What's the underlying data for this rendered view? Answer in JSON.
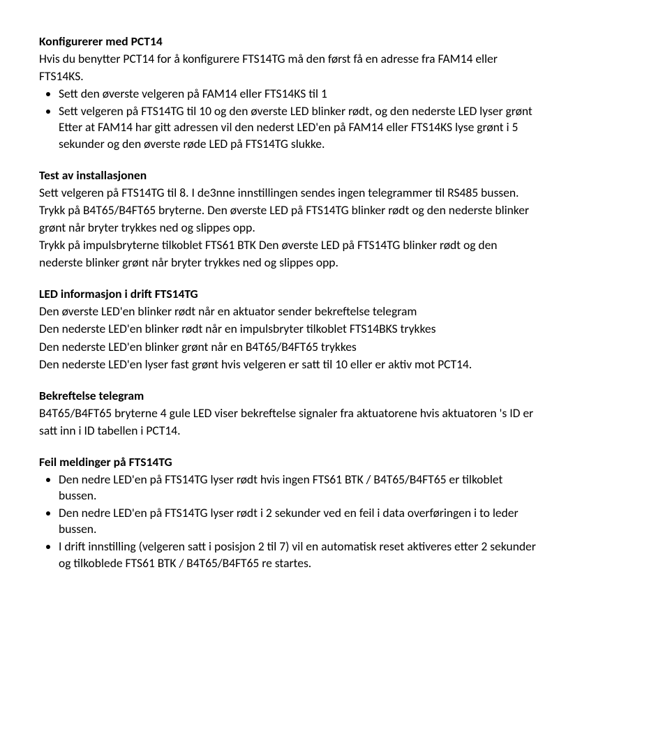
{
  "s1": {
    "heading": "Konfigurerer med PCT14",
    "intro1": "Hvis du benytter PCT14 for å konfigurere FTS14TG må den først få en adresse fra FAM14 eller",
    "intro2": "FTS14KS.",
    "b1": "Sett den øverste velgeren på FAM14 eller FTS14KS til 1",
    "b2a": "Sett velgeren på FTS14TG til 10 og den øverste LED blinker rødt, og den nederste LED lyser grønt",
    "b2b": "Etter at FAM14 har gitt adressen vil den nederst LED'en på FAM14 eller FTS14KS lyse grønt i 5",
    "b2c": "sekunder og den øverste røde LED på FTS14TG slukke."
  },
  "s2": {
    "heading": "Test av installasjonen",
    "p1": "Sett velgeren på FTS14TG til 8. I de3nne innstillingen sendes ingen telegrammer til RS485 bussen.",
    "p2a": "Trykk på B4T65/B4FT65 bryterne. Den øverste LED på FTS14TG blinker rødt og den nederste blinker",
    "p2b": "grønt når bryter trykkes ned og slippes opp.",
    "p3a": "Trykk på impulsbryterne tilkoblet FTS61 BTK Den øverste LED på FTS14TG blinker rødt og den",
    "p3b": "nederste blinker grønt når bryter trykkes ned og slippes opp."
  },
  "s3": {
    "heading": "LED informasjon i drift FTS14TG",
    "l1": "Den øverste LED'en blinker rødt når en aktuator sender bekreftelse telegram",
    "l2": "Den nederste LED'en blinker rødt når en impulsbryter tilkoblet FTS14BKS trykkes",
    "l3": "Den nederste LED'en blinker grønt når en B4T65/B4FT65 trykkes",
    "l4": "Den nederste LED'en lyser fast grønt hvis velgeren er satt til 10 eller er aktiv mot PCT14."
  },
  "s4": {
    "heading": "Bekreftelse telegram",
    "p1a": "B4T65/B4FT65 bryterne 4 gule LED viser bekreftelse signaler fra aktuatorene hvis aktuatoren 's ID er",
    "p1b": "satt inn i ID tabellen i PCT14."
  },
  "s5": {
    "heading": "Feil meldinger på FTS14TG",
    "b1a": "Den nedre LED'en på FTS14TG lyser rødt hvis ingen FTS61 BTK / B4T65/B4FT65 er tilkoblet",
    "b1b": "bussen.",
    "b2a": "Den nedre LED'en på FTS14TG lyser rødt i 2 sekunder ved en feil i data overføringen i to leder",
    "b2b": "bussen.",
    "b3a": "I drift innstilling (velgeren satt i posisjon 2 til 7) vil en automatisk reset aktiveres etter 2 sekunder",
    "b3b": "og tilkoblede FTS61 BTK / B4T65/B4FT65 re startes."
  }
}
